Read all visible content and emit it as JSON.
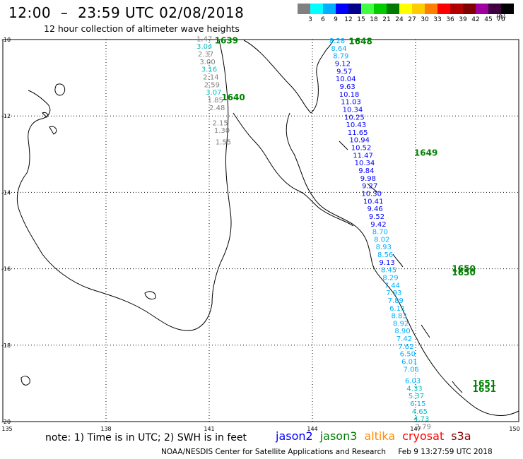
{
  "header": {
    "title": "12:00  –  23:59 UTC 02/08/2018",
    "subtitle": "12 hour collection of altimeter wave heights"
  },
  "scale": {
    "unit": "(ft)",
    "bins": [
      {
        "label": "3",
        "color": "#808080"
      },
      {
        "label": "6",
        "color": "#00ffff"
      },
      {
        "label": "9",
        "color": "#00b0ff"
      },
      {
        "label": "12",
        "color": "#0000ff"
      },
      {
        "label": "15",
        "color": "#00008b"
      },
      {
        "label": "18",
        "color": "#40ff40"
      },
      {
        "label": "21",
        "color": "#00cc00"
      },
      {
        "label": "24",
        "color": "#007a00"
      },
      {
        "label": "27",
        "color": "#ffff00"
      },
      {
        "label": "30",
        "color": "#ffcc00"
      },
      {
        "label": "33",
        "color": "#ff8000"
      },
      {
        "label": "36",
        "color": "#ff0000"
      },
      {
        "label": "39",
        "color": "#b00000"
      },
      {
        "label": "42",
        "color": "#800000"
      },
      {
        "label": "45",
        "color": "#a000a0"
      },
      {
        "label": "70",
        "color": "#400040"
      },
      {
        "label": "",
        "color": "#000000"
      }
    ]
  },
  "axes": {
    "lon_labels": [
      "135",
      "138",
      "141",
      "144",
      "147",
      "150"
    ],
    "lat_labels": [
      "-10",
      "-12",
      "-14",
      "-16",
      "-18",
      "-20"
    ]
  },
  "track_west": {
    "satellite_color": "#008000",
    "time_labels": [
      {
        "text": "1639",
        "lon": 141.5,
        "lat": -10.03
      },
      {
        "text": "1640",
        "lon": 141.7,
        "lat": -11.52
      }
    ],
    "points": [
      {
        "value": "1.47",
        "lon": 140.86,
        "lat": -9.97,
        "color": "#808080"
      },
      {
        "value": "3.04",
        "lon": 140.86,
        "lat": -10.17,
        "color": "#00bfbf"
      },
      {
        "value": "2.37",
        "lon": 140.9,
        "lat": -10.37,
        "color": "#808080"
      },
      {
        "value": "3.00",
        "lon": 140.95,
        "lat": -10.57,
        "color": "#808080"
      },
      {
        "value": "3.16",
        "lon": 141.0,
        "lat": -10.77,
        "color": "#00bfbf"
      },
      {
        "value": "2.14",
        "lon": 141.05,
        "lat": -10.97,
        "color": "#808080"
      },
      {
        "value": "2.59",
        "lon": 141.08,
        "lat": -11.17,
        "color": "#808080"
      },
      {
        "value": "3.07",
        "lon": 141.13,
        "lat": -11.37,
        "color": "#00bfbf"
      },
      {
        "value": "1.85",
        "lon": 141.18,
        "lat": -11.57,
        "color": "#808080"
      },
      {
        "value": "2.48",
        "lon": 141.23,
        "lat": -11.77,
        "color": "#808080"
      },
      {
        "value": "2.15",
        "lon": 141.32,
        "lat": -12.17,
        "color": "#808080"
      },
      {
        "value": "1.30",
        "lon": 141.37,
        "lat": -12.37,
        "color": "#808080"
      },
      {
        "value": "1.55",
        "lon": 141.41,
        "lat": -12.67,
        "color": "#808080"
      }
    ]
  },
  "track_east": {
    "satellite_color": "#008000",
    "time_labels": [
      {
        "text": "1648",
        "lon": 145.4,
        "lat": -10.05
      },
      {
        "text": "1649",
        "lon": 147.3,
        "lat": -12.97
      },
      {
        "text": "1650",
        "lon": 148.4,
        "lat": -16.0
      },
      {
        "text": "1650",
        "lon": 148.4,
        "lat": -16.1
      },
      {
        "text": "1651",
        "lon": 149.0,
        "lat": -19.0
      },
      {
        "text": "1651",
        "lon": 149.0,
        "lat": -19.15
      }
    ],
    "points": [
      {
        "value": "8.28",
        "lon": 144.72,
        "lat": -10.02,
        "color": "#00b0ff"
      },
      {
        "value": "8.64",
        "lon": 144.77,
        "lat": -10.22,
        "color": "#00b0ff"
      },
      {
        "value": "8.79",
        "lon": 144.83,
        "lat": -10.42,
        "color": "#00b0ff"
      },
      {
        "value": "9.12",
        "lon": 144.88,
        "lat": -10.62,
        "color": "#0000ff"
      },
      {
        "value": "9.57",
        "lon": 144.93,
        "lat": -10.82,
        "color": "#0000ff"
      },
      {
        "value": "10.04",
        "lon": 144.97,
        "lat": -11.02,
        "color": "#0000ff"
      },
      {
        "value": "9.63",
        "lon": 145.02,
        "lat": -11.22,
        "color": "#0000ff"
      },
      {
        "value": "10.18",
        "lon": 145.07,
        "lat": -11.42,
        "color": "#0000ff"
      },
      {
        "value": "11.03",
        "lon": 145.12,
        "lat": -11.62,
        "color": "#0000ff"
      },
      {
        "value": "10.34",
        "lon": 145.17,
        "lat": -11.82,
        "color": "#0000ff"
      },
      {
        "value": "10.25",
        "lon": 145.22,
        "lat": -12.02,
        "color": "#0000ff"
      },
      {
        "value": "10.43",
        "lon": 145.27,
        "lat": -12.22,
        "color": "#0000ff"
      },
      {
        "value": "11.65",
        "lon": 145.32,
        "lat": -12.42,
        "color": "#0000ff"
      },
      {
        "value": "10.94",
        "lon": 145.37,
        "lat": -12.62,
        "color": "#0000ff"
      },
      {
        "value": "10.52",
        "lon": 145.42,
        "lat": -12.82,
        "color": "#0000ff"
      },
      {
        "value": "11.47",
        "lon": 145.47,
        "lat": -13.02,
        "color": "#0000ff"
      },
      {
        "value": "10.34",
        "lon": 145.52,
        "lat": -13.22,
        "color": "#0000ff"
      },
      {
        "value": "9.84",
        "lon": 145.57,
        "lat": -13.42,
        "color": "#0000ff"
      },
      {
        "value": "9.98",
        "lon": 145.62,
        "lat": -13.62,
        "color": "#0000ff"
      },
      {
        "value": "9.27",
        "lon": 145.67,
        "lat": -13.82,
        "color": "#0000ff"
      },
      {
        "value": "10.30",
        "lon": 145.72,
        "lat": -14.02,
        "color": "#0000ff"
      },
      {
        "value": "10.41",
        "lon": 145.77,
        "lat": -14.22,
        "color": "#0000ff"
      },
      {
        "value": "9.46",
        "lon": 145.82,
        "lat": -14.42,
        "color": "#0000ff"
      },
      {
        "value": "9.52",
        "lon": 145.87,
        "lat": -14.62,
        "color": "#0000ff"
      },
      {
        "value": "9.42",
        "lon": 145.92,
        "lat": -14.82,
        "color": "#0000ff"
      },
      {
        "value": "8.70",
        "lon": 145.97,
        "lat": -15.02,
        "color": "#00b0ff"
      },
      {
        "value": "8.02",
        "lon": 146.02,
        "lat": -15.22,
        "color": "#00b0ff"
      },
      {
        "value": "8.93",
        "lon": 146.07,
        "lat": -15.42,
        "color": "#00b0ff"
      },
      {
        "value": "8.56",
        "lon": 146.12,
        "lat": -15.62,
        "color": "#00b0ff"
      },
      {
        "value": "9.13",
        "lon": 146.17,
        "lat": -15.82,
        "color": "#0000ff"
      },
      {
        "value": "8.45",
        "lon": 146.22,
        "lat": -16.02,
        "color": "#00b0ff"
      },
      {
        "value": "8.29",
        "lon": 146.27,
        "lat": -16.22,
        "color": "#00b0ff"
      },
      {
        "value": "7.44",
        "lon": 146.32,
        "lat": -16.42,
        "color": "#00b0ff"
      },
      {
        "value": "7.93",
        "lon": 146.37,
        "lat": -16.62,
        "color": "#00b0ff"
      },
      {
        "value": "7.89",
        "lon": 146.42,
        "lat": -16.82,
        "color": "#00b0ff"
      },
      {
        "value": "6.11",
        "lon": 146.47,
        "lat": -17.02,
        "color": "#00b0ff"
      },
      {
        "value": "8.83",
        "lon": 146.52,
        "lat": -17.22,
        "color": "#00b0ff"
      },
      {
        "value": "8.92",
        "lon": 146.57,
        "lat": -17.42,
        "color": "#00b0ff"
      },
      {
        "value": "8.90",
        "lon": 146.62,
        "lat": -17.62,
        "color": "#00b0ff"
      },
      {
        "value": "7.42",
        "lon": 146.67,
        "lat": -17.82,
        "color": "#00b0ff"
      },
      {
        "value": "7.62",
        "lon": 146.72,
        "lat": -18.02,
        "color": "#00b0ff"
      },
      {
        "value": "6.50",
        "lon": 146.77,
        "lat": -18.22,
        "color": "#00b0ff"
      },
      {
        "value": "6.01",
        "lon": 146.82,
        "lat": -18.42,
        "color": "#00b0ff"
      },
      {
        "value": "7.06",
        "lon": 146.87,
        "lat": -18.62,
        "color": "#00b0ff"
      },
      {
        "value": "6.03",
        "lon": 146.92,
        "lat": -18.92,
        "color": "#00b0ff"
      },
      {
        "value": "4.33",
        "lon": 146.97,
        "lat": -19.12,
        "color": "#00bfbf"
      },
      {
        "value": "5.37",
        "lon": 147.02,
        "lat": -19.32,
        "color": "#00bfbf"
      },
      {
        "value": "6.15",
        "lon": 147.07,
        "lat": -19.52,
        "color": "#00b0ff"
      },
      {
        "value": "4.65",
        "lon": 147.12,
        "lat": -19.72,
        "color": "#00bfbf"
      },
      {
        "value": "4.73",
        "lon": 147.17,
        "lat": -19.92,
        "color": "#00bfbf"
      },
      {
        "value": "2.79",
        "lon": 147.22,
        "lat": -20.12,
        "color": "#808080"
      }
    ]
  },
  "footer": {
    "note": "note: 1) Time is in UTC; 2) SWH is in feet",
    "satellites": [
      {
        "label": "jason2",
        "color": "#0000ff"
      },
      {
        "label": "jason3",
        "color": "#008000"
      },
      {
        "label": "altika",
        "color": "#ff8c00"
      },
      {
        "label": "cryosat",
        "color": "#ff0000"
      },
      {
        "label": "s3a",
        "color": "#8b0000"
      }
    ],
    "credit": "NOAA/NESDIS Center for Satellite Applications and Research",
    "timestamp": "Feb  9 13:27:59 UTC 2018"
  }
}
